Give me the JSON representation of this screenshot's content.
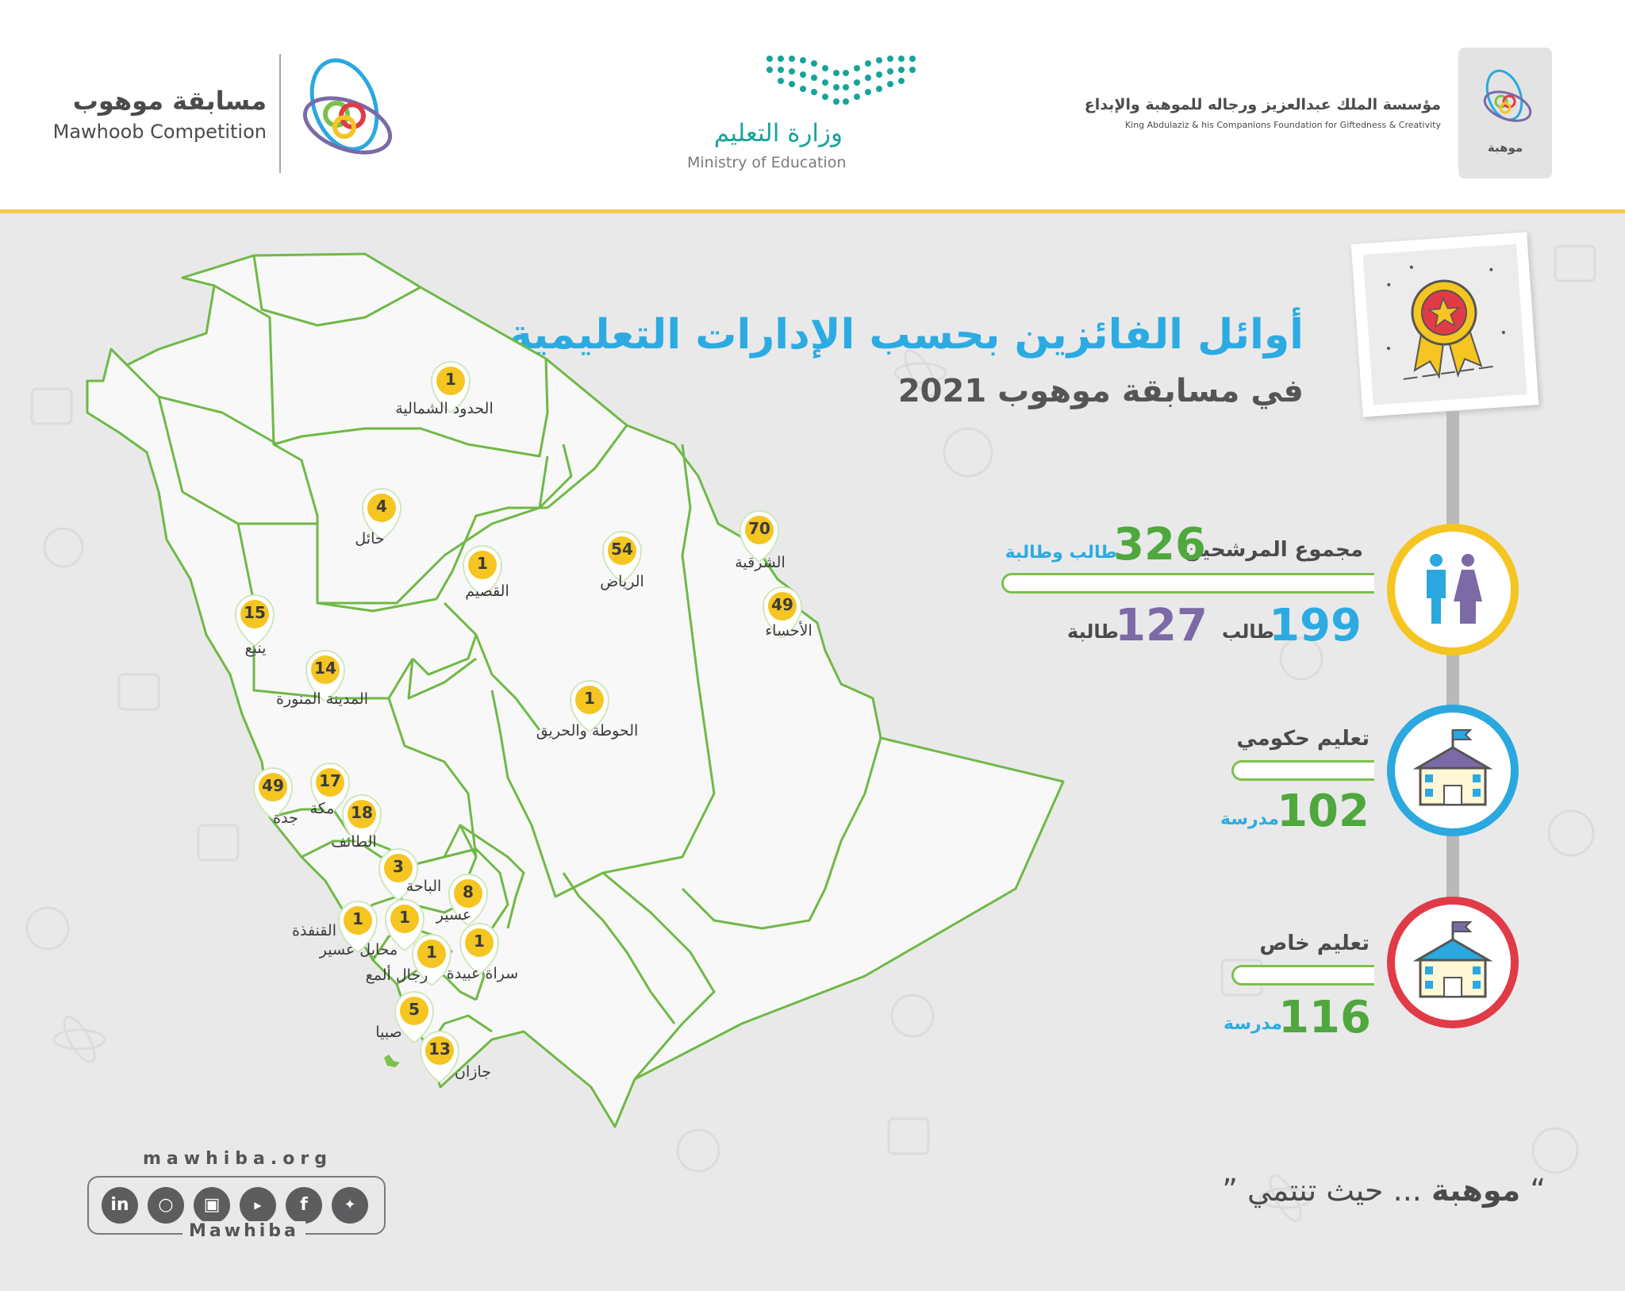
{
  "header": {
    "competition_ar": "مسابقة موهوب",
    "competition_en": "Mawhoob Competition",
    "ministry_ar": "وزارة التعليم",
    "ministry_en": "Ministry of Education",
    "foundation_ar": "مؤسسة الملك عبدالعزيز ورجاله للموهبة والإبداع",
    "foundation_en": "King Abdulaziz & his Companions Foundation for Giftedness & Creativity",
    "badge_label": "موهبة"
  },
  "title": {
    "main": "أوائل الفائزين بحسب الإدارات التعليمية",
    "sub": "في مسابقة موهوب 2021"
  },
  "regions": [
    {
      "name": "الحدود الشمالية",
      "count": "1"
    },
    {
      "name": "حائل",
      "count": "4"
    },
    {
      "name": "القصيم",
      "count": "1"
    },
    {
      "name": "الرياض",
      "count": "54"
    },
    {
      "name": "الشرقية",
      "count": "70"
    },
    {
      "name": "الأحساء",
      "count": "49"
    },
    {
      "name": "ينبع",
      "count": "15"
    },
    {
      "name": "المدينة المنورة",
      "count": "14"
    },
    {
      "name": "الحوطة والحريق",
      "count": "1"
    },
    {
      "name": "جدة",
      "count": "49"
    },
    {
      "name": "مكة",
      "count": "17"
    },
    {
      "name": "الطائف",
      "count": "18"
    },
    {
      "name": "الباحة",
      "count": "3"
    },
    {
      "name": "عسير",
      "count": "8"
    },
    {
      "name": "القنفذة",
      "count": "1"
    },
    {
      "name": "محايل عسير",
      "count": "1"
    },
    {
      "name": "رجال ألمع",
      "count": "1"
    },
    {
      "name": "سراة عبيدة",
      "count": "1"
    },
    {
      "name": "صبيا",
      "count": "5"
    },
    {
      "name": "جازان",
      "count": "13"
    }
  ],
  "stats": {
    "candidates_label": "مجموع المرشحين",
    "candidates_value": "326",
    "candidates_unit": "طالب وطالبة",
    "male_value": "199",
    "male_unit": "طالب",
    "female_value": "127",
    "female_unit": "طالبة",
    "gov_label": "تعليم حكومي",
    "gov_value": "102",
    "gov_unit": "مدرسة",
    "private_label": "تعليم خاص",
    "private_value": "116",
    "private_unit": "مدرسة"
  },
  "colors": {
    "accent_blue": "#2cabe2",
    "accent_green": "#4fa83d",
    "accent_purple": "#7b6aa6",
    "marker_yellow": "#f5c521",
    "ring_yellow": "#f5c521",
    "ring_blue": "#2aa8df",
    "ring_red": "#e03b47"
  },
  "footer": {
    "website": "mawhiba.org",
    "brand": "Mawhiba",
    "social_icons": [
      "linkedin-icon",
      "snapchat-icon",
      "instagram-icon",
      "youtube-icon",
      "facebook-icon",
      "twitter-icon"
    ],
    "slogan_brand": "موهبة",
    "slogan_text": "... حيث تنتمي"
  }
}
